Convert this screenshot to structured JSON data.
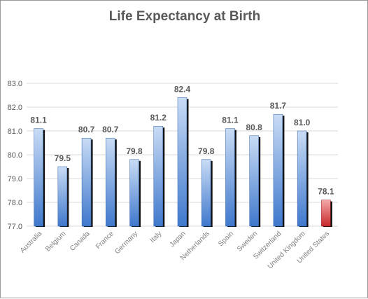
{
  "chart_data": {
    "type": "bar",
    "title": "Life Expectancy at Birth",
    "categories": [
      "Australia",
      "Belgium",
      "Canada",
      "France",
      "Germany",
      "Italy",
      "Japan",
      "Netherlands",
      "Spain",
      "Sweden",
      "Switzerland",
      "United Kingdom",
      "United States"
    ],
    "values": [
      81.1,
      79.5,
      80.7,
      80.7,
      79.8,
      81.2,
      82.4,
      79.8,
      81.1,
      80.8,
      81.7,
      81.0,
      78.1
    ],
    "value_labels": [
      "81.1",
      "79.5",
      "80.7",
      "80.7",
      "79.8",
      "81.2",
      "82.4",
      "79.8",
      "81.1",
      "80.8",
      "81.7",
      "81.0",
      "78.1"
    ],
    "ylim": [
      77.0,
      83.0
    ],
    "yticks": [
      "77.0",
      "78.0",
      "79.0",
      "80.0",
      "81.0",
      "82.0",
      "83.0"
    ],
    "grid": true,
    "legend": "none",
    "colors": {
      "bar_top": "#c9dcf5",
      "bar_bottom": "#3f78cc",
      "highlight_top": "#f3a8a8",
      "highlight_bottom": "#c8282a",
      "highlight_category": "United States",
      "gridline": "#d9d9d9",
      "shadow": "#111111"
    }
  }
}
